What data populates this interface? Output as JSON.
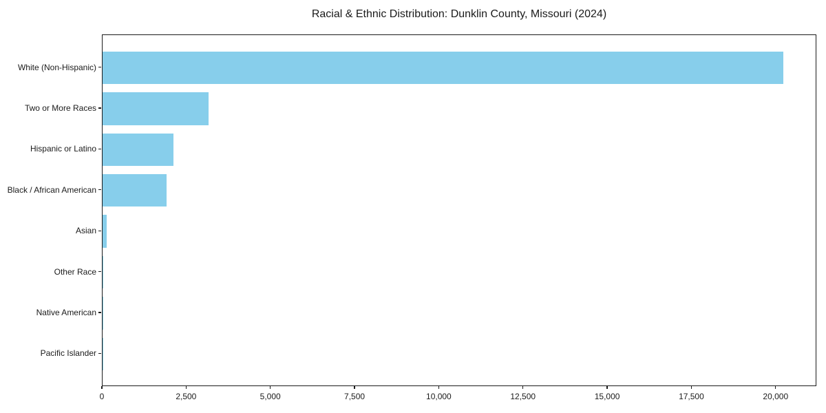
{
  "chart_data": {
    "type": "bar",
    "orientation": "horizontal",
    "title": "Racial & Ethnic Distribution: Dunklin County, Missouri (2024)",
    "categories": [
      "White (Non-Hispanic)",
      "Two or More Races",
      "Hispanic or Latino",
      "Black / African American",
      "Asian",
      "Other Race",
      "Native American",
      "Pacific Islander"
    ],
    "values": [
      20200,
      3140,
      2100,
      1910,
      115,
      25,
      12,
      6
    ],
    "xlabel": "",
    "ylabel": "",
    "xlim": [
      0,
      21210
    ],
    "x_ticks": [
      0,
      2500,
      5000,
      7500,
      10000,
      12500,
      15000,
      17500,
      20000
    ],
    "x_tick_labels": [
      "0",
      "2,500",
      "5,000",
      "7,500",
      "10,000",
      "12,500",
      "15,000",
      "17,500",
      "20,000"
    ],
    "bar_color": "#87CEEB",
    "axis_color": "#1a1a1a",
    "grid": false,
    "legend": false
  }
}
